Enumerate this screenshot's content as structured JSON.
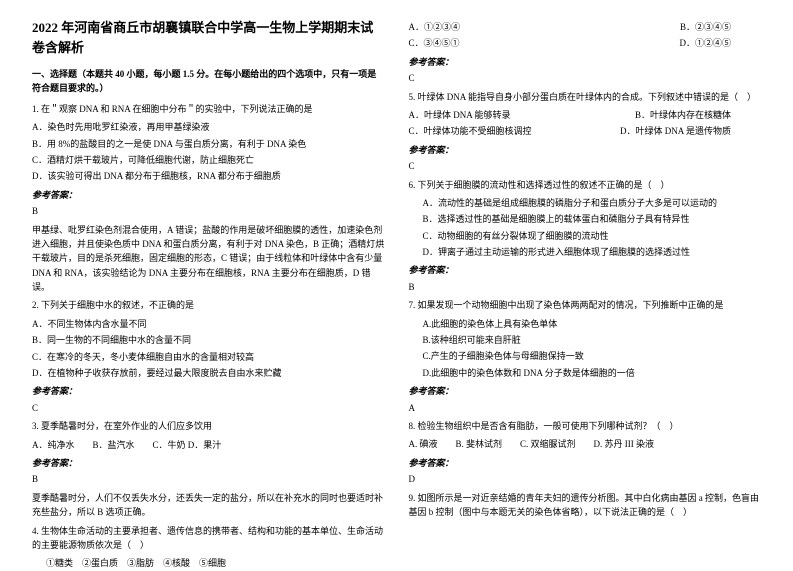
{
  "title": "2022 年河南省商丘市胡襄镇联合中学高一生物上学期期末试卷含解析",
  "section1_header": "一、选择题（本题共 40 小题，每小题 1.5 分。在每小题给出的四个选项中，只有一项是符合题目要求的。）",
  "q1": {
    "stem": "1. 在＂观察 DNA 和 RNA 在细胞中分布＂的实验中，下列说法正确的是",
    "A": "A．染色时先用吡罗红染液，再用甲基绿染液",
    "B": "B．用 8%的盐酸目的之一是使 DNA 与蛋白质分离，有利于 DNA 染色",
    "C": "C．酒精灯烘干载玻片，可降低细胞代谢，防止细胞死亡",
    "D": "D．该实验可得出 DNA 都分布于细胞核，RNA 都分布于细胞质",
    "ans_label": "参考答案：",
    "ans": "B",
    "explain": "甲基绿、吡罗红染色剂混合使用，A 错误；盐酸的作用是破坏细胞膜的透性，加速染色剂进入细胞，并且使染色质中 DNA 和蛋白质分离，有利于对 DNA 染色，B 正确；酒精灯烘干载玻片，目的是杀死细胞，固定细胞的形态，C 错误；由于线粒体和叶绿体中含有少量 DNA 和 RNA，该实验结论为 DNA 主要分布在细胞核，RNA 主要分布在细胞质，D 错误。"
  },
  "q2": {
    "stem": "2. 下列关于细胞中水的叙述，不正确的是",
    "A": "A．不同生物体内含水量不同",
    "B": "B．同一生物的不同细胞中水的含量不同",
    "C": "C．在寒冷的冬天，冬小麦体细胞自由水的含量相对较高",
    "D": "D．在植物种子收获存放前，要经过最大限度脱去自由水来贮藏",
    "ans_label": "参考答案：",
    "ans": "C"
  },
  "q3": {
    "stem": "3. 夏季酷暑时分，在室外作业的人们应多饮用",
    "opts": "A．纯净水　　B．盐汽水　　C．牛奶 D．果汁",
    "ans_label": "参考答案：",
    "ans": "B",
    "explain": "夏季酷暑时分，人们不仅丢失水分，还丢失一定的盐分，所以在补充水的同时也要适时补充些盐分，所以 B 选项正确。"
  },
  "q4": {
    "stem": "4. 生物体生命活动的主要承担者、遗传信息的携带者、结构和功能的基本单位、生命活动的主要能源物质依次是（　）",
    "opts": "①糖类　②蛋白质　③脂肪　④核酸　⑤细胞"
  },
  "right_top": {
    "A": "A．①②③④",
    "B": "B．②③④⑤",
    "C": "C．③④⑤①",
    "D": "D．①②④⑤",
    "ans_label": "参考答案：",
    "ans": "C"
  },
  "q5": {
    "stem": "5. 叶绿体 DNA 能指导自身小部分蛋白质在叶绿体内的合成。下列叙述中错误的是（　）",
    "A": "A．叶绿体 DNA 能够转录",
    "B": "B．叶绿体内存在核糖体",
    "C": "C．叶绿体功能不受细胞核调控",
    "D": "D．叶绿体 DNA 是遗传物质",
    "ans_label": "参考答案：",
    "ans": "C"
  },
  "q6": {
    "stem": "6. 下列关于细胞膜的流动性和选择透过性的叙述不正确的是（　）",
    "A": "A．流动性的基础是组成细胞膜的磷脂分子和蛋白质分子大多是可以运动的",
    "B": "B．选择透过性的基础是细胞膜上的载体蛋白和磷脂分子具有特异性",
    "C": "C．动物细胞的有丝分裂体现了细胞膜的流动性",
    "D": "D．钾离子通过主动运输的形式进入细胞体现了细胞膜的选择透过性",
    "ans_label": "参考答案：",
    "ans": "B"
  },
  "q7": {
    "stem": "7. 如果发现一个动物细胞中出现了染色体两两配对的情况，下列推断中正确的是",
    "A": "A.此细胞的染色体上具有染色单体",
    "B": "B.该种组织可能来自肝脏",
    "C": "C.产生的子细胞染色体与母细胞保持一致",
    "D": "D.此细胞中的染色体数和 DNA 分子数是体细胞的一倍",
    "ans_label": "参考答案：",
    "ans": "A"
  },
  "q8": {
    "stem": "8. 检验生物组织中是否含有脂肪，一般可使用下列哪种试剂？（　）",
    "opts": "A. 碘液　　B. 斐林试剂　　C. 双缩脲试剂　　D. 苏丹 III 染液",
    "ans_label": "参考答案：",
    "ans": "D"
  },
  "q9": {
    "stem": "9. 如图所示是一对近亲结婚的青年夫妇的遗传分析图。其中白化病由基因 a 控制，色盲由基因 b 控制（图中与本题无关的染色体省略），以下说法正确的是（　）"
  }
}
